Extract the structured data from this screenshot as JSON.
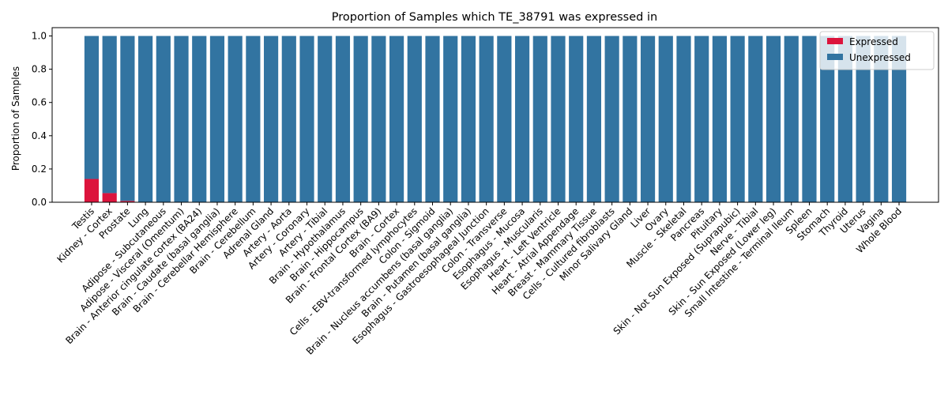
{
  "chart_data": {
    "type": "bar",
    "stacked": true,
    "title": "Proportion of Samples which TE_38791 was expressed in",
    "xlabel": "",
    "ylabel": "Proportion of Samples",
    "ylim": [
      0,
      1.05
    ],
    "yticks": [
      0.0,
      0.2,
      0.4,
      0.6,
      0.8,
      1.0
    ],
    "ytick_labels": [
      "0.0",
      "0.2",
      "0.4",
      "0.6",
      "0.8",
      "1.0"
    ],
    "grid": false,
    "legend_position": "top-right",
    "categories": [
      "Testis",
      "Kidney - Cortex",
      "Prostate",
      "Lung",
      "Adipose - Subcutaneous",
      "Adipose - Visceral (Omentum)",
      "Brain - Anterior cingulate cortex (BA24)",
      "Brain - Caudate (basal ganglia)",
      "Brain - Cerebellar Hemisphere",
      "Brain - Cerebellum",
      "Adrenal Gland",
      "Artery - Aorta",
      "Artery - Coronary",
      "Artery - Tibial",
      "Brain - Hypothalamus",
      "Brain - Hippocampus",
      "Brain - Frontal Cortex (BA9)",
      "Brain - Cortex",
      "Cells - EBV-transformed lymphocytes",
      "Colon - Sigmoid",
      "Brain - Nucleus accumbens (basal ganglia)",
      "Brain - Putamen (basal ganglia)",
      "Esophagus - Gastroesophageal Junction",
      "Colon - Transverse",
      "Esophagus - Mucosa",
      "Esophagus - Muscularis",
      "Heart - Left Ventricle",
      "Heart - Atrial Appendage",
      "Breast - Mammary Tissue",
      "Cells - Cultured fibroblasts",
      "Minor Salivary Gland",
      "Liver",
      "Ovary",
      "Muscle - Skeletal",
      "Pancreas",
      "Pituitary",
      "Skin - Not Sun Exposed (Suprapubic)",
      "Nerve - Tibial",
      "Skin - Sun Exposed (Lower leg)",
      "Small Intestine - Terminal Ileum",
      "Spleen",
      "Stomach",
      "Thyroid",
      "Uterus",
      "Vagina",
      "Whole Blood"
    ],
    "series": [
      {
        "name": "Expressed",
        "color": "#dc143c",
        "values": [
          0.14,
          0.055,
          0.008,
          0,
          0,
          0,
          0,
          0,
          0,
          0,
          0,
          0,
          0,
          0,
          0,
          0,
          0,
          0,
          0,
          0,
          0,
          0,
          0,
          0,
          0,
          0,
          0,
          0,
          0,
          0,
          0,
          0,
          0,
          0,
          0,
          0,
          0,
          0,
          0,
          0,
          0,
          0,
          0,
          0,
          0,
          0
        ]
      },
      {
        "name": "Unexpressed",
        "color": "#3274a1",
        "values": [
          0.86,
          0.945,
          0.992,
          1,
          1,
          1,
          1,
          1,
          1,
          1,
          1,
          1,
          1,
          1,
          1,
          1,
          1,
          1,
          1,
          1,
          1,
          1,
          1,
          1,
          1,
          1,
          1,
          1,
          1,
          1,
          1,
          1,
          1,
          1,
          1,
          1,
          1,
          1,
          1,
          1,
          1,
          1,
          1,
          1,
          1,
          1
        ]
      }
    ]
  }
}
